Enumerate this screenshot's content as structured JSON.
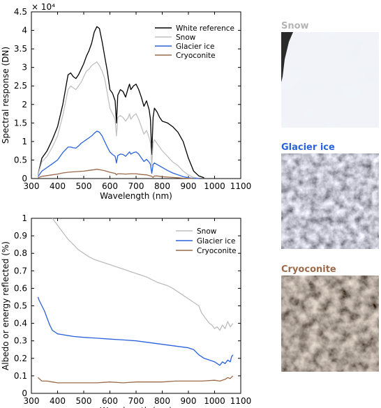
{
  "chart_data": [
    {
      "type": "line",
      "xlabel": "Wavelength (nm)",
      "ylabel": "Spectral response (DN)",
      "y_exponent": "× 10⁴",
      "xlim": [
        300,
        1100
      ],
      "ylim": [
        0,
        4.5
      ],
      "x_ticks": [
        "300",
        "400",
        "500",
        "600",
        "700",
        "800",
        "900",
        "1000",
        "1100"
      ],
      "y_ticks": [
        "0",
        "0.5",
        "1",
        "1.5",
        "2",
        "2.5",
        "3",
        "3.5",
        "4",
        "4.5"
      ],
      "legend": "top-right",
      "grid": false,
      "series": [
        {
          "name": "White reference",
          "color": "#000000",
          "x": [
            325,
            340,
            360,
            380,
            400,
            420,
            440,
            450,
            460,
            470,
            480,
            490,
            500,
            510,
            520,
            530,
            540,
            550,
            560,
            570,
            580,
            590,
            600,
            610,
            620,
            625,
            630,
            640,
            650,
            660,
            670,
            675,
            680,
            690,
            700,
            710,
            720,
            730,
            740,
            750,
            755,
            760,
            765,
            770,
            780,
            790,
            800,
            820,
            840,
            860,
            880,
            900,
            920,
            940,
            960
          ],
          "y": [
            0.1,
            0.55,
            0.75,
            1.05,
            1.4,
            2.0,
            2.8,
            2.85,
            2.75,
            2.7,
            2.8,
            2.95,
            3.1,
            3.3,
            3.45,
            3.65,
            3.95,
            4.1,
            4.05,
            3.7,
            3.3,
            2.9,
            2.4,
            2.3,
            2.1,
            1.5,
            2.25,
            2.4,
            2.35,
            2.2,
            2.45,
            2.55,
            2.4,
            2.5,
            2.55,
            2.4,
            2.2,
            1.95,
            2.1,
            1.85,
            1.6,
            0.65,
            1.65,
            1.9,
            1.8,
            1.65,
            1.55,
            1.5,
            1.4,
            1.25,
            1.0,
            0.55,
            0.2,
            0.07,
            0.02
          ]
        },
        {
          "name": "Snow",
          "color": "#c0c0c0",
          "x": [
            325,
            340,
            360,
            380,
            400,
            420,
            440,
            450,
            460,
            470,
            480,
            490,
            500,
            510,
            520,
            530,
            540,
            550,
            560,
            570,
            580,
            590,
            600,
            610,
            620,
            625,
            630,
            640,
            650,
            660,
            670,
            675,
            680,
            690,
            700,
            710,
            720,
            730,
            740,
            750,
            755,
            760,
            765,
            770,
            780,
            790,
            800,
            820,
            840,
            860,
            880,
            900,
            920,
            940
          ],
          "y": [
            0.1,
            0.45,
            0.6,
            0.85,
            1.15,
            1.7,
            2.4,
            2.5,
            2.45,
            2.4,
            2.5,
            2.6,
            2.75,
            2.9,
            2.95,
            3.05,
            3.1,
            3.15,
            3.05,
            2.9,
            2.7,
            2.3,
            1.9,
            1.75,
            1.6,
            1.15,
            1.65,
            1.7,
            1.65,
            1.55,
            1.65,
            1.75,
            1.6,
            1.7,
            1.75,
            1.6,
            1.4,
            1.2,
            1.3,
            1.1,
            0.95,
            0.35,
            0.95,
            1.05,
            0.95,
            0.85,
            0.75,
            0.6,
            0.45,
            0.35,
            0.2,
            0.1,
            0.03,
            0.01
          ]
        },
        {
          "name": "Glacier ice",
          "color": "#2a62dc",
          "x": [
            325,
            340,
            360,
            380,
            400,
            420,
            440,
            450,
            460,
            470,
            480,
            490,
            500,
            510,
            520,
            530,
            540,
            550,
            560,
            570,
            580,
            590,
            600,
            610,
            620,
            625,
            630,
            640,
            650,
            660,
            670,
            675,
            680,
            690,
            700,
            710,
            720,
            730,
            740,
            750,
            755,
            760,
            765,
            770,
            780,
            790,
            800,
            820,
            840,
            860,
            880,
            900,
            920,
            940
          ],
          "y": [
            0.05,
            0.2,
            0.3,
            0.4,
            0.5,
            0.7,
            0.85,
            0.85,
            0.83,
            0.82,
            0.88,
            0.95,
            1.0,
            1.05,
            1.1,
            1.15,
            1.22,
            1.28,
            1.25,
            1.15,
            1.0,
            0.85,
            0.72,
            0.65,
            0.6,
            0.42,
            0.62,
            0.66,
            0.65,
            0.6,
            0.68,
            0.72,
            0.66,
            0.7,
            0.72,
            0.66,
            0.56,
            0.46,
            0.52,
            0.44,
            0.38,
            0.14,
            0.38,
            0.42,
            0.38,
            0.34,
            0.3,
            0.22,
            0.15,
            0.1,
            0.05,
            0.02,
            0.005,
            0.0
          ]
        },
        {
          "name": "Cryoconite",
          "color": "#9c6a4a",
          "x": [
            325,
            340,
            360,
            380,
            400,
            420,
            440,
            460,
            480,
            500,
            520,
            540,
            550,
            560,
            580,
            600,
            620,
            625,
            630,
            640,
            660,
            680,
            700,
            720,
            740,
            760,
            765,
            770,
            780,
            800,
            820,
            840,
            860,
            880,
            900,
            920
          ],
          "y": [
            0.02,
            0.06,
            0.08,
            0.1,
            0.12,
            0.15,
            0.17,
            0.18,
            0.19,
            0.2,
            0.22,
            0.24,
            0.25,
            0.24,
            0.21,
            0.17,
            0.14,
            0.1,
            0.13,
            0.13,
            0.12,
            0.13,
            0.13,
            0.11,
            0.1,
            0.06,
            0.03,
            0.07,
            0.07,
            0.05,
            0.04,
            0.03,
            0.02,
            0.01,
            0.005,
            0.0
          ]
        }
      ]
    },
    {
      "type": "line",
      "xlabel": "Wavelength (nm)",
      "ylabel": "Albedo or energy reflected (%)",
      "xlim": [
        300,
        1100
      ],
      "ylim": [
        0,
        1
      ],
      "x_ticks": [
        "300",
        "400",
        "500",
        "600",
        "700",
        "800",
        "900",
        "1000",
        "1100"
      ],
      "y_ticks": [
        "0",
        "0.1",
        "0.2",
        "0.3",
        "0.4",
        "0.5",
        "0.6",
        "0.7",
        "0.8",
        "0.9",
        "1"
      ],
      "legend": "top-right",
      "grid": false,
      "series": [
        {
          "name": "Snow",
          "color": "#bdbdbd",
          "x": [
            380,
            400,
            420,
            440,
            460,
            480,
            500,
            520,
            540,
            560,
            580,
            600,
            620,
            640,
            660,
            680,
            700,
            720,
            740,
            760,
            780,
            800,
            820,
            840,
            860,
            880,
            900,
            920,
            940,
            950,
            960,
            970,
            980,
            990,
            1000,
            1010,
            1020,
            1030,
            1040,
            1050,
            1060,
            1070
          ],
          "y": [
            1.0,
            0.96,
            0.92,
            0.88,
            0.85,
            0.82,
            0.8,
            0.78,
            0.765,
            0.755,
            0.745,
            0.735,
            0.725,
            0.715,
            0.705,
            0.695,
            0.685,
            0.675,
            0.665,
            0.65,
            0.635,
            0.625,
            0.615,
            0.6,
            0.58,
            0.56,
            0.54,
            0.52,
            0.5,
            0.46,
            0.44,
            0.42,
            0.4,
            0.39,
            0.37,
            0.38,
            0.36,
            0.39,
            0.37,
            0.41,
            0.38,
            0.4
          ]
        },
        {
          "name": "Glacier ice",
          "color": "#2a62dc",
          "x": [
            325,
            330,
            340,
            350,
            360,
            370,
            380,
            390,
            400,
            420,
            440,
            460,
            500,
            550,
            600,
            650,
            700,
            750,
            800,
            850,
            900,
            920,
            940,
            950,
            960,
            980,
            1000,
            1010,
            1020,
            1030,
            1040,
            1050,
            1060,
            1065,
            1070
          ],
          "y": [
            0.55,
            0.53,
            0.5,
            0.47,
            0.43,
            0.39,
            0.36,
            0.35,
            0.34,
            0.335,
            0.33,
            0.325,
            0.32,
            0.315,
            0.31,
            0.305,
            0.3,
            0.29,
            0.28,
            0.27,
            0.26,
            0.25,
            0.22,
            0.21,
            0.2,
            0.19,
            0.18,
            0.17,
            0.16,
            0.18,
            0.17,
            0.19,
            0.18,
            0.21,
            0.22
          ]
        },
        {
          "name": "Cryoconite",
          "color": "#9c6a4a",
          "x": [
            325,
            340,
            360,
            380,
            400,
            450,
            500,
            550,
            600,
            650,
            700,
            750,
            800,
            850,
            900,
            950,
            1000,
            1020,
            1040,
            1050,
            1060,
            1070
          ],
          "y": [
            0.09,
            0.07,
            0.07,
            0.065,
            0.06,
            0.06,
            0.06,
            0.06,
            0.065,
            0.06,
            0.065,
            0.065,
            0.065,
            0.07,
            0.07,
            0.07,
            0.075,
            0.07,
            0.08,
            0.09,
            0.085,
            0.1
          ]
        }
      ]
    }
  ],
  "photos": [
    {
      "title": "Snow",
      "color": "#b4b4b4",
      "texture": "snow-photo"
    },
    {
      "title": "Glacier ice",
      "color": "#2a62dc",
      "texture": "glacier-ice-photo"
    },
    {
      "title": "Cryoconite",
      "color": "#9c6a4a",
      "texture": "cryoconite-photo"
    }
  ]
}
